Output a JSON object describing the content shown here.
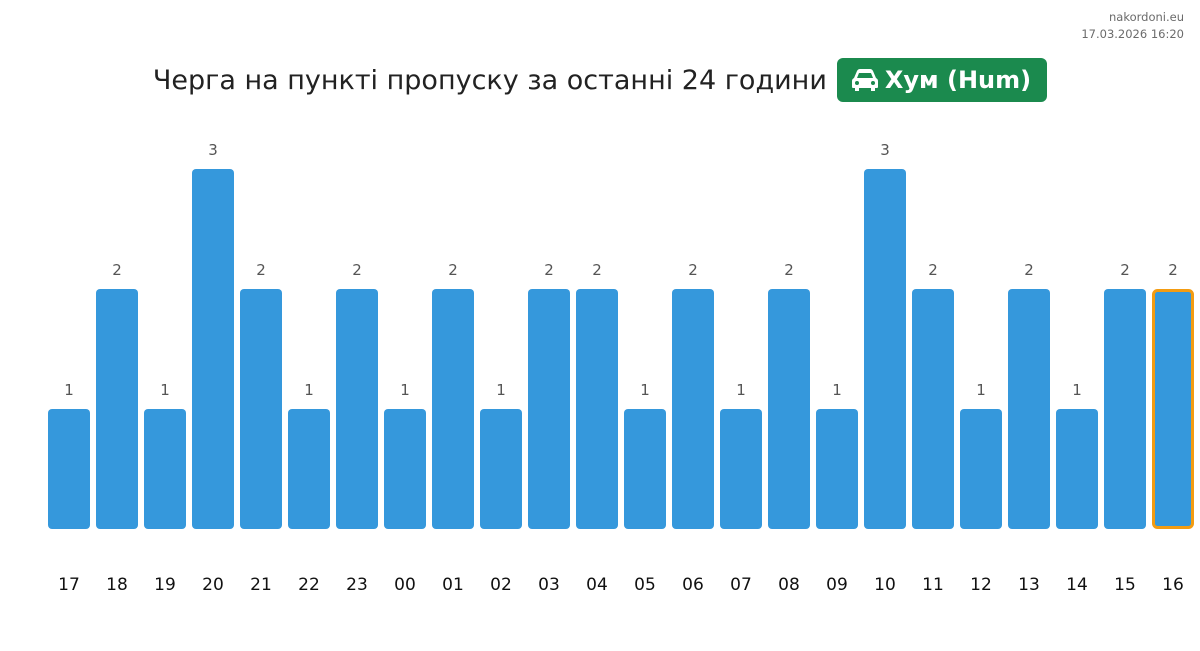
{
  "site": "nakordoni.eu",
  "timestamp": "17.03.2026 16:20",
  "title": "Черга на пункті пропуску за останні 24 години",
  "checkpoint_badge": {
    "label": "Хум (Hum)",
    "icon": "car-icon"
  },
  "colors": {
    "bar": "#3598dc",
    "highlight_border": "#f39c12",
    "badge": "#1b8a4e",
    "value_label": "#555555",
    "tick_label": "#111111"
  },
  "chart_data": {
    "type": "bar",
    "categories": [
      "17",
      "18",
      "19",
      "20",
      "21",
      "22",
      "23",
      "00",
      "01",
      "02",
      "03",
      "04",
      "05",
      "06",
      "07",
      "08",
      "09",
      "10",
      "11",
      "12",
      "13",
      "14",
      "15",
      "16"
    ],
    "values": [
      1,
      2,
      1,
      3,
      2,
      1,
      2,
      1,
      2,
      1,
      2,
      2,
      1,
      2,
      1,
      2,
      1,
      3,
      2,
      1,
      2,
      1,
      2,
      2
    ],
    "ylim": [
      0,
      3
    ],
    "highlighted_category": "16",
    "grid": false
  }
}
